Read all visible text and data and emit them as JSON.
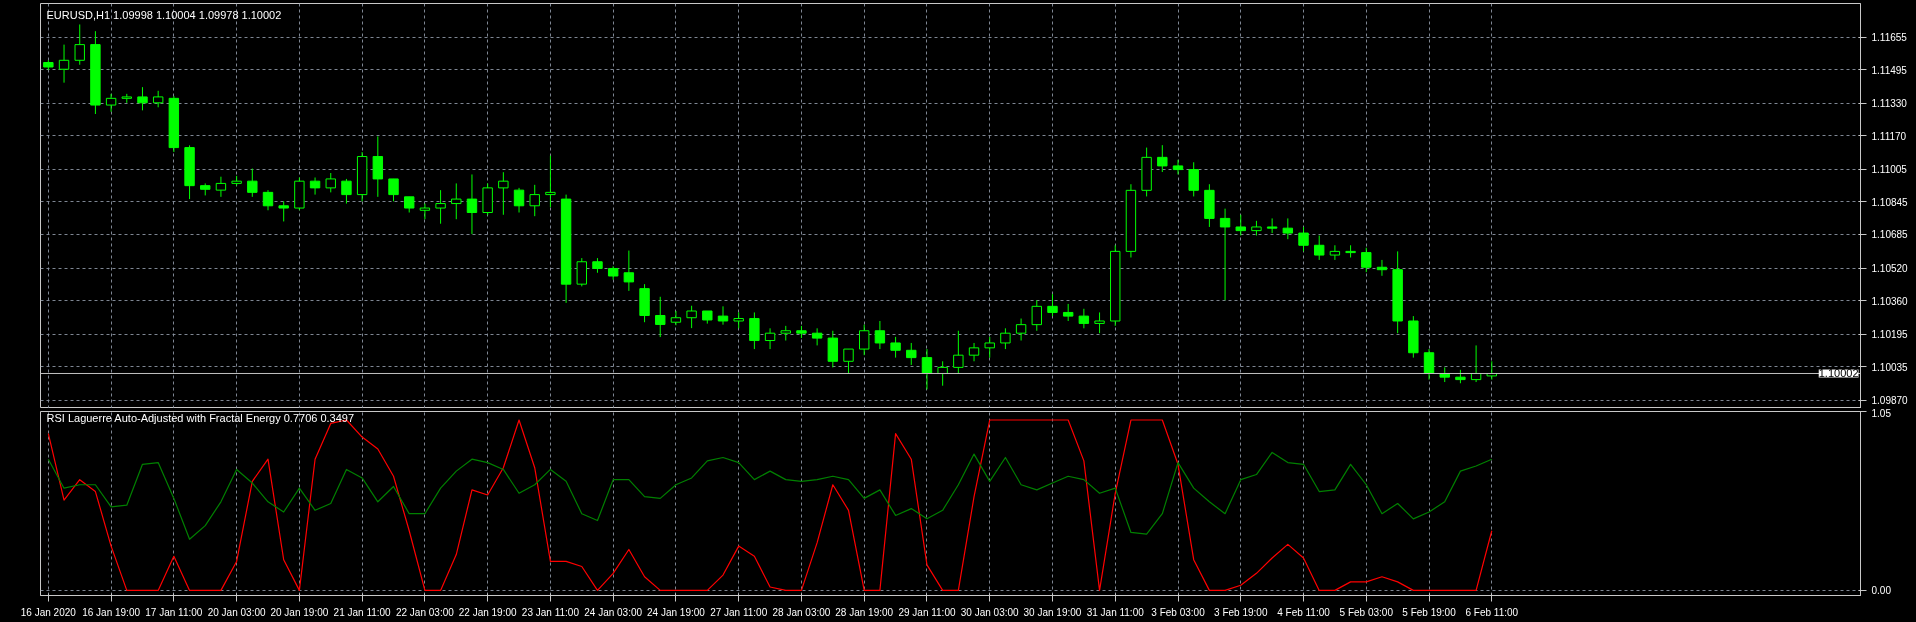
{
  "chart_data": [
    {
      "type": "candlestick",
      "title": "EURUSD,H1  1.09998 1.10004 1.09978 1.10002",
      "color": "#00ff00",
      "grid": true,
      "tick_labels": "y",
      "categories": [
        null,
        null,
        null,
        null,
        null,
        null,
        null,
        null,
        null,
        null,
        null,
        null,
        null,
        null,
        null,
        null,
        null,
        null,
        null,
        null,
        null,
        null,
        null,
        null,
        null,
        null,
        null,
        null,
        null,
        null,
        null,
        null,
        null,
        null,
        null,
        null,
        null,
        null,
        null,
        null,
        null,
        null,
        null,
        null,
        null,
        null,
        null,
        null,
        null,
        null,
        null,
        null,
        null,
        null,
        null,
        null,
        null,
        null,
        null,
        null,
        null,
        null,
        null,
        null,
        null,
        null,
        null,
        null,
        null,
        null,
        null,
        null,
        null,
        null,
        null,
        null,
        null,
        null,
        null,
        null,
        null,
        null,
        null,
        null,
        null,
        null,
        null,
        null,
        null,
        null,
        null,
        null,
        null,
        null,
        null,
        null,
        null,
        null,
        null,
        null,
        null,
        null,
        null,
        null,
        null,
        null,
        null,
        null,
        null,
        null,
        null,
        null,
        null,
        null,
        null,
        null
      ],
      "ylim": [
        1.0983,
        1.1182
      ],
      "yticks": [
        1.11655,
        1.11495,
        {
          "value": 1.1133,
          "label": "1.11330"
        },
        {
          "value": 1.1117,
          "label": "1.11170"
        },
        1.11005,
        1.10845,
        1.10685,
        {
          "value": 1.1052,
          "label": "1.10520"
        },
        {
          "value": 1.1036,
          "label": "1.10360"
        },
        1.10195,
        1.10035,
        {
          "value": 1.0987,
          "label": "1.09870"
        }
      ],
      "ref_lines": [
        {
          "axis": "y",
          "value": 1.10002,
          "label": "1.10002",
          "color": "#c0c0c0"
        }
      ],
      "ohlc": [
        [
          1.1153,
          1.11541,
          1.11493,
          1.11508
        ],
        [
          1.11497,
          1.11618,
          1.11431,
          1.11541
        ],
        [
          1.11541,
          1.11717,
          1.11519,
          1.11618
        ],
        [
          1.11618,
          1.11684,
          1.11277,
          1.11321
        ],
        [
          1.11321,
          1.11376,
          1.11288,
          1.11354
        ],
        [
          1.11354,
          1.11376,
          1.11332,
          1.11361
        ],
        [
          1.11361,
          1.11409,
          1.11295,
          1.11332
        ],
        [
          1.11332,
          1.11391,
          1.1131,
          1.11361
        ],
        [
          1.11354,
          1.11365,
          1.1109,
          1.11112
        ],
        [
          1.11112,
          1.11123,
          1.10859,
          1.10925
        ],
        [
          1.10925,
          1.10936,
          1.10877,
          1.10907
        ],
        [
          1.10903,
          1.10969,
          1.1087,
          1.10936
        ],
        [
          1.10936,
          1.10973,
          1.10925,
          1.10947
        ],
        [
          1.10947,
          1.11009,
          1.1087,
          1.10892
        ],
        [
          1.10892,
          1.10903,
          1.10804,
          1.10826
        ],
        [
          1.10826,
          1.10848,
          1.10749,
          1.10815
        ],
        [
          1.10815,
          1.10965,
          1.10804,
          1.10947
        ],
        [
          1.10947,
          1.10965,
          1.10881,
          1.10914
        ],
        [
          1.10914,
          1.10987,
          1.10892,
          1.10958
        ],
        [
          1.10947,
          1.10958,
          1.10837,
          1.10881
        ],
        [
          1.10881,
          1.1109,
          1.10848,
          1.11068
        ],
        [
          1.11068,
          1.11167,
          1.1087,
          1.10958
        ],
        [
          1.10958,
          1.10958,
          1.10848,
          1.10881
        ],
        [
          1.1087,
          1.1087,
          1.10793,
          1.10815
        ],
        [
          1.10804,
          1.10837,
          1.1076,
          1.10815
        ],
        [
          1.10815,
          1.10903,
          1.10738,
          1.10837
        ],
        [
          1.10837,
          1.10936,
          1.1076,
          1.10859
        ],
        [
          1.10859,
          1.1098,
          1.10687,
          1.10793
        ],
        [
          1.10793,
          1.10936,
          1.1078,
          1.10914
        ],
        [
          1.10914,
          1.10991,
          1.10782,
          1.10947
        ],
        [
          1.10903,
          1.10914,
          1.10793,
          1.10826
        ],
        [
          1.10826,
          1.10929,
          1.10775,
          1.10881
        ],
        [
          1.10881,
          1.11072,
          1.10819,
          1.10892
        ],
        [
          1.10859,
          1.10881,
          1.10349,
          1.10441
        ],
        [
          1.10441,
          1.10569,
          1.1043,
          1.10551
        ],
        [
          1.10551,
          1.10569,
          1.10497,
          1.10518
        ],
        [
          1.10518,
          1.10529,
          1.10463,
          1.10481
        ],
        [
          1.10497,
          1.10606,
          1.10408,
          1.10452
        ],
        [
          1.10419,
          1.10441,
          1.10254,
          1.10287
        ],
        [
          1.10287,
          1.10379,
          1.10181,
          1.10243
        ],
        [
          1.10254,
          1.10309,
          1.10239,
          1.10276
        ],
        [
          1.10276,
          1.10335,
          1.10225,
          1.10309
        ],
        [
          1.10309,
          1.10309,
          1.10247,
          1.10265
        ],
        [
          1.10284,
          1.10332,
          1.10242,
          1.1026
        ],
        [
          1.1026,
          1.10302,
          1.10224,
          1.10272
        ],
        [
          1.10272,
          1.10302,
          1.10122,
          1.10164
        ],
        [
          1.10164,
          1.10224,
          1.10122,
          1.102
        ],
        [
          1.102,
          1.10236,
          1.10164,
          1.10212
        ],
        [
          1.10212,
          1.10236,
          1.10176,
          1.102
        ],
        [
          1.102,
          1.10224,
          1.1014,
          1.10176
        ],
        [
          1.10176,
          1.10212,
          1.10032,
          1.10062
        ],
        [
          1.10062,
          1.10122,
          1.10002,
          1.10122
        ],
        [
          1.10122,
          1.10242,
          1.10092,
          1.10212
        ],
        [
          1.10212,
          1.1026,
          1.10122,
          1.10152
        ],
        [
          1.10152,
          1.10182,
          1.1008,
          1.10116
        ],
        [
          1.10116,
          1.10152,
          1.10044,
          1.1008
        ],
        [
          1.1008,
          1.10122,
          1.09924,
          1.10002
        ],
        [
          1.10002,
          1.10062,
          1.09942,
          1.10032
        ],
        [
          1.10032,
          1.10212,
          1.10002,
          1.10092
        ],
        [
          1.10092,
          1.10152,
          1.10062,
          1.10128
        ],
        [
          1.10128,
          1.10182,
          1.1008,
          1.10152
        ],
        [
          1.10152,
          1.10224,
          1.10122,
          1.102
        ],
        [
          1.102,
          1.10272,
          1.10164,
          1.10242
        ],
        [
          1.10242,
          1.10362,
          1.10212,
          1.10332
        ],
        [
          1.10332,
          1.10392,
          1.10284,
          1.10302
        ],
        [
          1.10302,
          1.10344,
          1.1026,
          1.10284
        ],
        [
          1.10284,
          1.1032,
          1.10224,
          1.10248
        ],
        [
          1.10248,
          1.10302,
          1.102,
          1.1026
        ],
        [
          1.1026,
          1.10632,
          1.10236,
          1.10602
        ],
        [
          1.10602,
          1.10932,
          1.10572,
          1.10902
        ],
        [
          1.10902,
          1.11112,
          1.10872,
          1.11064
        ],
        [
          1.11064,
          1.11124,
          1.10992,
          1.11022
        ],
        [
          1.11022,
          1.11052,
          1.1098,
          1.11004
        ],
        [
          1.11004,
          1.1104,
          1.10872,
          1.10902
        ],
        [
          1.10902,
          1.10932,
          1.10722,
          1.10764
        ],
        [
          1.10764,
          1.10812,
          1.10362,
          1.10722
        ],
        [
          1.10722,
          1.10782,
          1.1068,
          1.10704
        ],
        [
          1.10704,
          1.10752,
          1.1068,
          1.10722
        ],
        [
          1.10722,
          1.10764,
          1.10692,
          1.10716
        ],
        [
          1.10716,
          1.10764,
          1.10662,
          1.10692
        ],
        [
          1.10692,
          1.10722,
          1.10602,
          1.10632
        ],
        [
          1.10632,
          1.1068,
          1.1056,
          1.10584
        ],
        [
          1.10584,
          1.10632,
          1.1056,
          1.10602
        ],
        [
          1.10602,
          1.10632,
          1.10572,
          1.10596
        ],
        [
          1.10596,
          1.1062,
          1.105,
          1.10524
        ],
        [
          1.10524,
          1.1056,
          1.10482,
          1.10512
        ],
        [
          1.10512,
          1.10602,
          1.102,
          1.1026
        ],
        [
          1.1026,
          1.10284,
          1.1008,
          1.10104
        ],
        [
          1.10104,
          1.10122,
          1.09972,
          1.10002
        ],
        [
          1.10002,
          1.10032,
          1.0996,
          1.09984
        ],
        [
          1.09984,
          1.1002,
          1.09954,
          1.09972
        ],
        [
          1.09972,
          1.1014,
          1.0996,
          1.10002
        ],
        [
          1.0999,
          1.10062,
          1.09972,
          1.10002
        ],
        null,
        null,
        null,
        null,
        null,
        null,
        null,
        null,
        null,
        null,
        null,
        null,
        null,
        null,
        null,
        null,
        null,
        null,
        null,
        null,
        null,
        null,
        null
      ]
    },
    {
      "type": "line",
      "title": "RSI Laguerre Auto-Adjusted with Fractal Energy 0.7706 0.3497",
      "grid": true,
      "categories": [
        "16 Jan 2020",
        null,
        null,
        null,
        "16 Jan 19:00",
        null,
        null,
        null,
        "17 Jan 11:00",
        null,
        null,
        null,
        "20 Jan 03:00",
        null,
        null,
        null,
        "20 Jan 19:00",
        null,
        null,
        null,
        "21 Jan 11:00",
        null,
        null,
        null,
        "22 Jan 03:00",
        null,
        null,
        null,
        "22 Jan 19:00",
        null,
        null,
        null,
        "23 Jan 11:00",
        null,
        null,
        null,
        "24 Jan 03:00",
        null,
        null,
        null,
        "24 Jan 19:00",
        null,
        null,
        null,
        "27 Jan 11:00",
        null,
        null,
        null,
        "28 Jan 03:00",
        null,
        null,
        null,
        "28 Jan 19:00",
        null,
        null,
        null,
        "29 Jan 11:00",
        null,
        null,
        null,
        "30 Jan 03:00",
        null,
        null,
        null,
        "30 Jan 19:00",
        null,
        null,
        null,
        "31 Jan 11:00",
        null,
        null,
        null,
        "3 Feb 03:00",
        null,
        null,
        null,
        "3 Feb 19:00",
        null,
        null,
        null,
        "4 Feb 11:00",
        null,
        null,
        null,
        "5 Feb 03:00",
        null,
        null,
        null,
        "5 Feb 19:00",
        null,
        null,
        null,
        "6 Feb 11:00",
        null,
        null,
        null,
        null,
        null,
        null,
        null,
        null,
        null,
        null,
        null,
        null,
        null,
        null,
        null,
        null,
        null,
        null,
        null,
        null,
        null,
        null,
        null
      ],
      "ylim": [
        -0.03,
        1.05
      ],
      "yticks": [
        {
          "value": 0,
          "label": "0.00"
        },
        1.05
      ],
      "series": [
        {
          "color": "#ff0000",
          "values": [
            0.92,
            0.53,
            0.65,
            0.58,
            0.26,
            0,
            0,
            0,
            0.2,
            0,
            0,
            0,
            0.17,
            0.64,
            0.77,
            0.18,
            0,
            0.77,
            0.98,
            1,
            0.9,
            0.83,
            0.67,
            0.35,
            0,
            0,
            0.21,
            0.59,
            0.56,
            0.72,
            1,
            0.72,
            0.17,
            0.17,
            0.14,
            0,
            0.1,
            0.24,
            0.08,
            0,
            0,
            0,
            0,
            0.09,
            0.26,
            0.2,
            0.02,
            0,
            0,
            0.28,
            0.62,
            0.47,
            0,
            0,
            0.92,
            0.77,
            0.15,
            0,
            0,
            0.55,
            1,
            1,
            1,
            1,
            1,
            1,
            0.76,
            0,
            0.57,
            1,
            1,
            1,
            0.74,
            0.18,
            0,
            0,
            0.03,
            0.1,
            0.19,
            0.27,
            0.19,
            0,
            0,
            0.05,
            0.05,
            0.08,
            0.05,
            0,
            0,
            0,
            0,
            0,
            0.35,
            null,
            null,
            null,
            null,
            null,
            null,
            null,
            null,
            null,
            null,
            null,
            null,
            null,
            null,
            null,
            null,
            null,
            null,
            null,
            null,
            null,
            null,
            null
          ]
        },
        {
          "color": "#008000",
          "values": [
            0.77,
            0.6,
            0.62,
            0.62,
            0.49,
            0.5,
            0.74,
            0.75,
            0.54,
            0.3,
            0.38,
            0.52,
            0.71,
            0.63,
            0.52,
            0.46,
            0.6,
            0.47,
            0.51,
            0.71,
            0.66,
            0.52,
            0.61,
            0.45,
            0.45,
            0.6,
            0.7,
            0.77,
            0.75,
            0.71,
            0.57,
            0.62,
            0.71,
            0.64,
            0.45,
            0.41,
            0.65,
            0.65,
            0.55,
            0.54,
            0.62,
            0.66,
            0.76,
            0.78,
            0.75,
            0.65,
            0.7,
            0.65,
            0.64,
            0.65,
            0.67,
            0.65,
            0.54,
            0.59,
            0.44,
            0.48,
            0.42,
            0.47,
            0.62,
            0.8,
            0.64,
            0.78,
            0.62,
            0.59,
            0.63,
            0.67,
            0.65,
            0.57,
            0.6,
            0.34,
            0.33,
            0.45,
            0.75,
            0.6,
            0.52,
            0.45,
            0.65,
            0.68,
            0.81,
            0.75,
            0.74,
            0.58,
            0.59,
            0.74,
            0.62,
            0.45,
            0.51,
            0.42,
            0.46,
            0.52,
            0.7,
            0.73,
            0.77,
            null,
            null,
            null,
            null,
            null,
            null,
            null,
            null,
            null,
            null,
            null,
            null,
            null,
            null,
            null,
            null,
            null,
            null,
            null,
            null,
            null,
            null,
            null
          ]
        }
      ]
    }
  ]
}
